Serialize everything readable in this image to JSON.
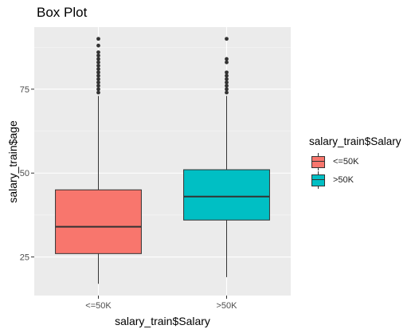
{
  "chart_data": {
    "type": "box",
    "title": "Box Plot",
    "xlabel": "salary_train$Salary",
    "ylabel": "salary_train$age",
    "categories": [
      "<=50K",
      ">50K"
    ],
    "y_ticks": [
      25,
      50,
      75
    ],
    "ylim": [
      13.5,
      93.5
    ],
    "grid": true,
    "legend": {
      "title": "salary_train$Salary",
      "placement": "right",
      "entries": [
        "<=50K",
        ">50K"
      ]
    },
    "colors": [
      "#F8766D",
      "#00BFC4"
    ],
    "boxes": [
      {
        "category": "<=50K",
        "min": 17,
        "q1": 26,
        "median": 34,
        "q3": 45,
        "max": 73,
        "outliers": [
          74,
          75,
          76,
          77,
          78,
          79,
          80,
          81,
          82,
          83,
          84,
          85,
          86,
          88,
          90
        ]
      },
      {
        "category": ">50K",
        "min": 19,
        "q1": 36,
        "median": 43,
        "q3": 51,
        "max": 73,
        "outliers": [
          74,
          75,
          76,
          77,
          78,
          79,
          80,
          83,
          84,
          90
        ]
      }
    ]
  }
}
